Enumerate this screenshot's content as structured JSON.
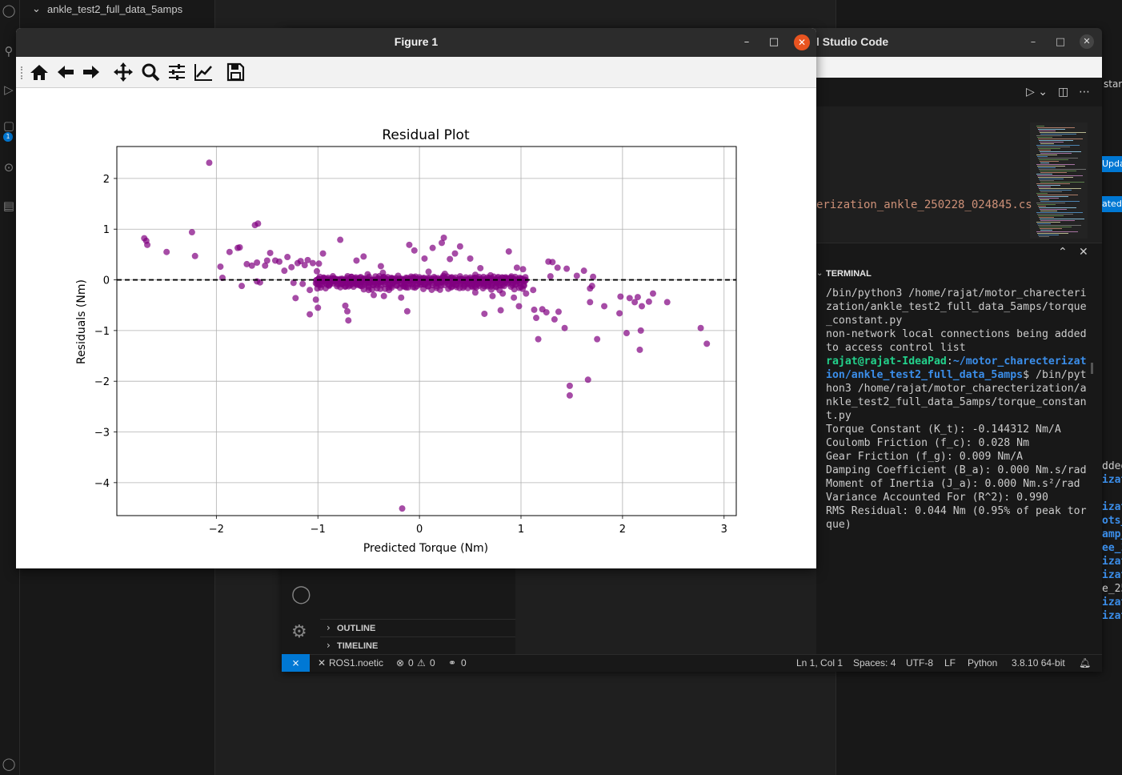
{
  "background_window": {
    "explorer_item": "ankle_test2_full_data_5amps",
    "badge_count": "1"
  },
  "vscode": {
    "title": "l Studio Code",
    "editor_filename_fragment": "erization_ankle_250228_024845.cs",
    "panel_label": "TERMINAL",
    "terminal_lines": [
      {
        "text": "/bin/python3 /home/rajat/motor_charecterization/ankle_test2_full_data_5amps/torque_constant.py"
      },
      {
        "text": "non-network local connections being added to access control list"
      },
      {
        "prompt_user": "rajat@rajat-IdeaPad",
        "prompt_sep": ":",
        "prompt_path": "~/motor_charecterization/ankle_test2_full_data_5amps",
        "prompt_end": "$ ",
        "text": "/bin/python3 /home/rajat/motor_charecterization/ankle_test2_full_data_5amps/torque_constant.py"
      },
      {
        "text": "Torque Constant (K_t): -0.144312 Nm/A"
      },
      {
        "text": "Coulomb Friction (f_c): 0.028 Nm"
      },
      {
        "text": "Gear Friction (f_g): 0.009 Nm/A"
      },
      {
        "text": "Damping Coefficient (B_a): 0.000 Nm.s/rad"
      },
      {
        "text": "Moment of Inertia (J_a): 0.000 Nm.s²/rad"
      },
      {
        "text": "Variance Accounted For (R^2): 0.990"
      },
      {
        "text": "RMS Residual: 0.044 Nm (0.95% of peak torque)"
      }
    ],
    "outline_label": "OUTLINE",
    "timeline_label": "TIMELINE",
    "status": {
      "ros": "ROS1.noetic",
      "errors": "0",
      "warnings": "0",
      "ports": "0",
      "cursor": "Ln 1, Col 1",
      "spaces": "Spaces: 4",
      "encoding": "UTF-8",
      "eol": "LF",
      "language": "Python",
      "interpreter": "3.8.10 64-bit"
    }
  },
  "right_strip": [
    "star",
    "Upda",
    "ated",
    "dded",
    "izat",
    "izat",
    "ots_",
    "amp_",
    "ee_1",
    "izat",
    "izat",
    "e_25",
    "izat",
    "izat"
  ],
  "figure": {
    "title": "Figure 1",
    "toolbar": [
      "home-icon",
      "back-icon",
      "forward-icon",
      "pan-icon",
      "zoom-icon",
      "configure-subplots-icon",
      "edit-axis-icon",
      "save-icon"
    ]
  },
  "chart_data": {
    "type": "scatter",
    "title": "Residual Plot",
    "xlabel": "Predicted Torque (Nm)",
    "ylabel": "Residuals (Nm)",
    "xlim": [
      -2.98,
      3.12
    ],
    "ylim": [
      -4.65,
      2.63
    ],
    "xticks": [
      -2,
      -1,
      0,
      1,
      2,
      3
    ],
    "yticks": [
      2,
      1,
      0,
      -1,
      -2,
      -3,
      -4
    ],
    "xtick_labels": [
      "−2",
      "−1",
      "0",
      "1",
      "2",
      "3"
    ],
    "ytick_labels": [
      "2",
      "1",
      "0",
      "−1",
      "−2",
      "−3",
      "−4"
    ],
    "grid": true,
    "marker_color": "#800080",
    "reference_line": {
      "y": 0,
      "style": "dashed",
      "color": "#000000"
    },
    "series": [
      {
        "points": [
          [
            -2.71,
            0.82
          ],
          [
            -2.69,
            0.77
          ],
          [
            -2.68,
            0.69
          ],
          [
            -2.49,
            0.55
          ],
          [
            -2.24,
            0.94
          ],
          [
            -2.21,
            0.47
          ],
          [
            -2.07,
            2.31
          ],
          [
            -1.96,
            0.26
          ],
          [
            -1.94,
            0.04
          ],
          [
            -1.87,
            0.55
          ],
          [
            -1.79,
            0.63
          ],
          [
            -1.77,
            0.64
          ],
          [
            -1.75,
            -0.12
          ],
          [
            -1.7,
            0.31
          ],
          [
            -1.65,
            0.28
          ],
          [
            -1.62,
            1.08
          ],
          [
            -1.59,
            1.11
          ],
          [
            -1.6,
            0.34
          ],
          [
            -1.6,
            -0.03
          ],
          [
            -1.57,
            -0.05
          ],
          [
            -1.52,
            0.28
          ],
          [
            -1.5,
            0.38
          ],
          [
            -1.47,
            0.53
          ],
          [
            -1.42,
            0.38
          ],
          [
            -1.38,
            0.36
          ],
          [
            -1.33,
            0.18
          ],
          [
            -1.3,
            0.45
          ],
          [
            -1.26,
            0.25
          ],
          [
            -1.24,
            -0.06
          ],
          [
            -1.22,
            -0.36
          ],
          [
            -1.2,
            0.33
          ],
          [
            -1.17,
            0.37
          ],
          [
            -1.15,
            -0.08
          ],
          [
            -1.13,
            0.29
          ],
          [
            -1.1,
            0.39
          ],
          [
            -1.08,
            -0.2
          ],
          [
            -1.05,
            0.33
          ],
          [
            -1.02,
            -0.39
          ],
          [
            -1.01,
            0.17
          ],
          [
            -0.99,
            0.32
          ],
          [
            -0.98,
            -0.1
          ],
          [
            -0.95,
            0.52
          ],
          [
            -1.0,
            -0.55
          ],
          [
            -1.08,
            -0.68
          ],
          [
            -0.78,
            0.79
          ],
          [
            -0.73,
            -0.51
          ],
          [
            -0.71,
            -0.62
          ],
          [
            -0.7,
            -0.8
          ],
          [
            -0.62,
            0.38
          ],
          [
            -0.55,
            0.46
          ],
          [
            -0.5,
            -0.2
          ],
          [
            -0.45,
            -0.3
          ],
          [
            -0.38,
            0.27
          ],
          [
            -0.35,
            -0.32
          ],
          [
            -0.3,
            -0.2
          ],
          [
            -0.18,
            -0.35
          ],
          [
            -0.12,
            -0.62
          ],
          [
            -0.1,
            0.69
          ],
          [
            -0.05,
            0.58
          ],
          [
            0.05,
            0.42
          ],
          [
            0.13,
            0.63
          ],
          [
            0.22,
            0.73
          ],
          [
            0.24,
            0.83
          ],
          [
            0.3,
            0.41
          ],
          [
            0.35,
            0.52
          ],
          [
            0.4,
            0.66
          ],
          [
            0.5,
            0.42
          ],
          [
            0.55,
            -0.25
          ],
          [
            0.6,
            0.23
          ],
          [
            0.64,
            -0.67
          ],
          [
            0.72,
            -0.32
          ],
          [
            0.8,
            -0.6
          ],
          [
            0.82,
            -0.27
          ],
          [
            0.88,
            0.56
          ],
          [
            0.93,
            -0.35
          ],
          [
            0.96,
            0.24
          ],
          [
            0.98,
            -0.52
          ],
          [
            1.0,
            -0.14
          ],
          [
            1.02,
            0.21
          ],
          [
            1.05,
            -0.27
          ],
          [
            1.12,
            -0.2
          ],
          [
            1.13,
            -0.59
          ],
          [
            1.15,
            -0.75
          ],
          [
            1.17,
            -1.17
          ],
          [
            1.21,
            -0.58
          ],
          [
            1.25,
            -0.64
          ],
          [
            1.27,
            0.36
          ],
          [
            1.29,
            0.07
          ],
          [
            1.31,
            0.35
          ],
          [
            1.33,
            -0.78
          ],
          [
            1.36,
            0.24
          ],
          [
            1.37,
            -0.63
          ],
          [
            1.43,
            -0.95
          ],
          [
            1.45,
            0.22
          ],
          [
            1.48,
            -2.09
          ],
          [
            1.48,
            -2.28
          ],
          [
            1.55,
            0.08
          ],
          [
            1.62,
            0.18
          ],
          [
            1.66,
            -1.97
          ],
          [
            1.68,
            -0.44
          ],
          [
            1.68,
            -0.17
          ],
          [
            1.7,
            -0.12
          ],
          [
            1.71,
            0.06
          ],
          [
            1.75,
            -1.17
          ],
          [
            1.82,
            -0.52
          ],
          [
            1.98,
            -0.33
          ],
          [
            1.97,
            -0.66
          ],
          [
            2.04,
            -1.05
          ],
          [
            2.07,
            -0.36
          ],
          [
            2.12,
            -0.44
          ],
          [
            2.15,
            -0.34
          ],
          [
            2.17,
            -1.38
          ],
          [
            2.18,
            -1.0
          ],
          [
            2.19,
            -0.52
          ],
          [
            2.26,
            -0.43
          ],
          [
            2.3,
            -0.27
          ],
          [
            2.44,
            -0.44
          ],
          [
            2.77,
            -0.95
          ],
          [
            2.83,
            -1.26
          ],
          [
            -0.17,
            -4.51
          ],
          [
            -0.9,
            -0.02
          ],
          [
            -0.84,
            0.03
          ],
          [
            -0.76,
            -0.07
          ],
          [
            -0.67,
            0.06
          ],
          [
            -0.59,
            -0.1
          ],
          [
            -0.51,
            0.11
          ],
          [
            -0.43,
            -0.04
          ],
          [
            -0.36,
            0.14
          ],
          [
            -0.28,
            -0.12
          ],
          [
            -0.21,
            0.08
          ],
          [
            -0.13,
            -0.15
          ],
          [
            -0.06,
            0.05
          ],
          [
            0.02,
            -0.09
          ],
          [
            0.09,
            0.16
          ],
          [
            0.17,
            -0.06
          ],
          [
            0.25,
            0.12
          ],
          [
            0.32,
            -0.13
          ],
          [
            0.4,
            0.07
          ],
          [
            0.47,
            -0.08
          ],
          [
            0.55,
            0.1
          ],
          [
            0.62,
            -0.05
          ],
          [
            0.7,
            0.09
          ],
          [
            0.77,
            -0.03
          ],
          [
            0.85,
            0.05
          ],
          [
            0.92,
            -0.07
          ]
        ]
      }
    ]
  }
}
